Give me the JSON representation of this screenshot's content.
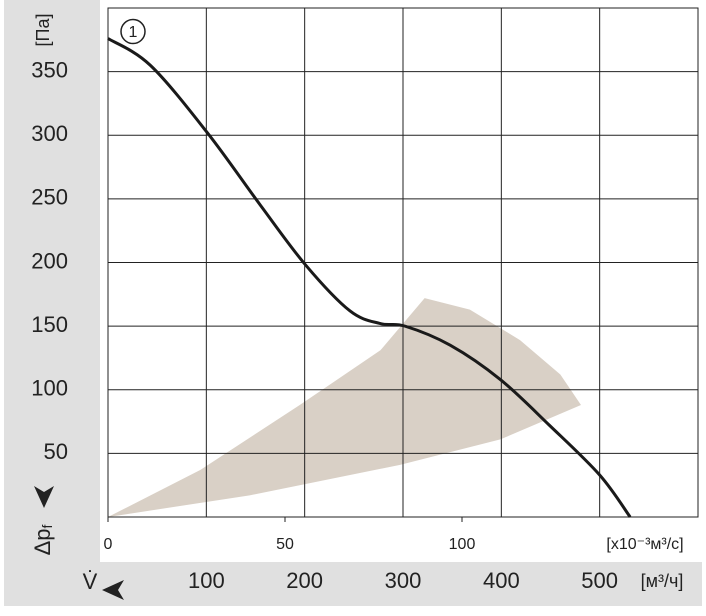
{
  "chart_data": {
    "type": "line",
    "x_label": "V̇",
    "x_unit": "[м³/ч]",
    "x2_unit": "[x10⁻³м³/с]",
    "y_label": {
      "main": "Δp",
      "sub": "f"
    },
    "y_unit": "[Па]",
    "xlim": [
      0,
      600
    ],
    "xticks": [
      100,
      200,
      300,
      400,
      500
    ],
    "x2lim": [
      0,
      166.67
    ],
    "x2ticks": [
      0,
      50,
      100
    ],
    "ylim": [
      0,
      400
    ],
    "yticks": [
      50,
      100,
      150,
      200,
      250,
      300,
      350
    ],
    "grid": true,
    "series": [
      {
        "name": "1",
        "color": "#1a1a1a",
        "x": [
          0,
          43,
          101,
          155,
          201,
          246,
          277,
          302,
          348,
          399,
          449,
          500,
          531
        ],
        "values": [
          376,
          355,
          302,
          245,
          198,
          162,
          152,
          150,
          135,
          108,
          72,
          33,
          0
        ]
      }
    ],
    "operating_area": {
      "color": "#d9d0c6",
      "x": [
        0,
        94,
        195,
        277,
        322,
        368,
        419,
        460,
        481,
        399,
        297,
        144
      ],
      "y": [
        0,
        37,
        88,
        131,
        172,
        163,
        139,
        112,
        88,
        61,
        41,
        17
      ]
    }
  }
}
